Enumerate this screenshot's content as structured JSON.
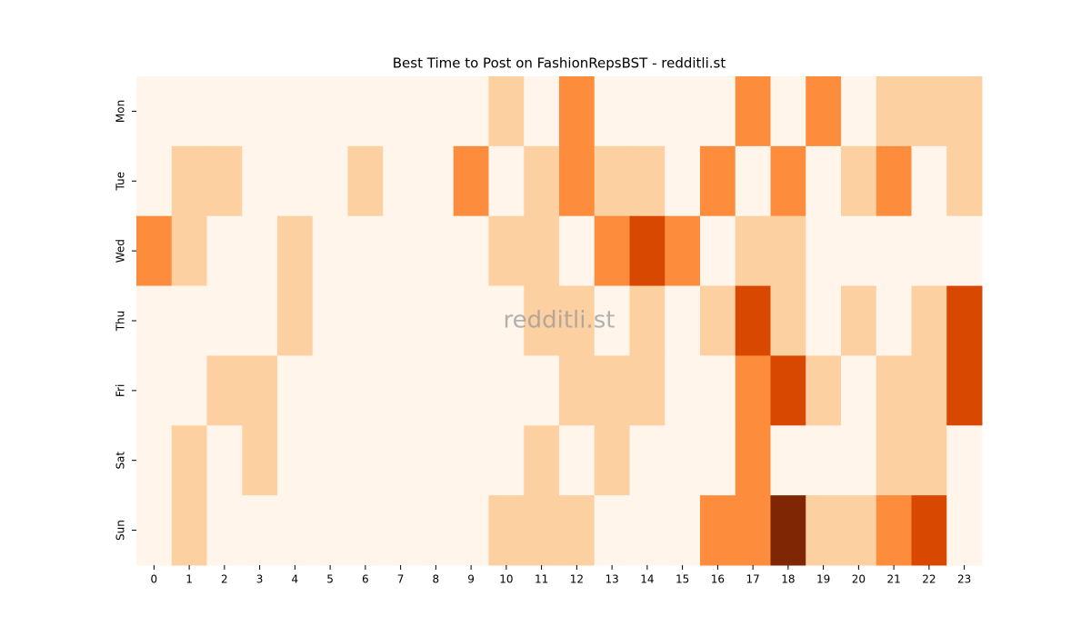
{
  "chart_data": {
    "type": "heatmap",
    "title": "Best Time to Post on FashionRepsBST - redditli.st",
    "watermark": "redditli.st",
    "x": [
      0,
      1,
      2,
      3,
      4,
      5,
      6,
      7,
      8,
      9,
      10,
      11,
      12,
      13,
      14,
      15,
      16,
      17,
      18,
      19,
      20,
      21,
      22,
      23
    ],
    "y": [
      "Mon",
      "Tue",
      "Wed",
      "Thu",
      "Fri",
      "Sat",
      "Sun"
    ],
    "values": [
      [
        0,
        0,
        0,
        0,
        0,
        0,
        0,
        0,
        0,
        0,
        1,
        0,
        2,
        0,
        0,
        0,
        0,
        2,
        0,
        2,
        0,
        1,
        1,
        1
      ],
      [
        0,
        1,
        1,
        0,
        0,
        0,
        1,
        0,
        0,
        2,
        0,
        1,
        2,
        1,
        1,
        0,
        2,
        0,
        2,
        0,
        1,
        2,
        0,
        1
      ],
      [
        2,
        1,
        0,
        0,
        1,
        0,
        0,
        0,
        0,
        0,
        1,
        1,
        0,
        2,
        3,
        2,
        0,
        1,
        1,
        0,
        0,
        0,
        0,
        0
      ],
      [
        0,
        0,
        0,
        0,
        1,
        0,
        0,
        0,
        0,
        0,
        0,
        1,
        1,
        0,
        1,
        0,
        1,
        3,
        1,
        0,
        1,
        0,
        1,
        3
      ],
      [
        0,
        0,
        1,
        1,
        0,
        0,
        0,
        0,
        0,
        0,
        0,
        0,
        1,
        1,
        1,
        0,
        0,
        2,
        3,
        1,
        0,
        1,
        1,
        3
      ],
      [
        0,
        1,
        0,
        1,
        0,
        0,
        0,
        0,
        0,
        0,
        0,
        1,
        0,
        1,
        0,
        0,
        0,
        2,
        0,
        0,
        0,
        1,
        1,
        0
      ],
      [
        0,
        1,
        0,
        0,
        0,
        0,
        0,
        0,
        0,
        0,
        1,
        1,
        1,
        0,
        0,
        0,
        2,
        2,
        4,
        1,
        1,
        2,
        3,
        0
      ]
    ],
    "colorscale": [
      "#fff5eb",
      "#fdd0a2",
      "#fd8d3c",
      "#d94801",
      "#7f2704"
    ],
    "zlim": [
      0,
      4
    ]
  }
}
